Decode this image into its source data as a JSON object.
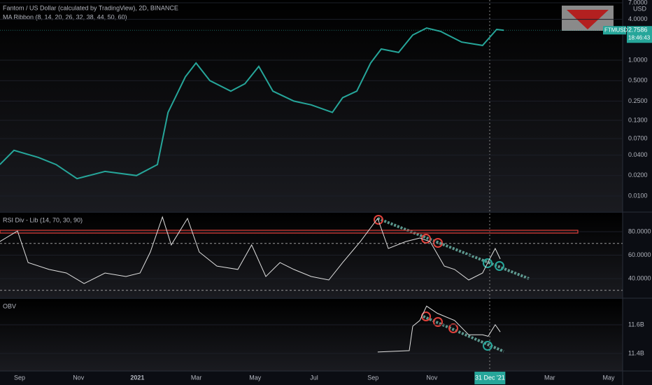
{
  "chart_data": [
    {
      "type": "line",
      "title": "Fantom / US Dollar (calculated by TradingView), 2D, BINANCE",
      "subtitle": "MA Ribbon (8, 14, 20, 26, 32, 38, 44, 50, 60)",
      "axis_unit": "USD",
      "log_scale": true,
      "color": "#26a69a",
      "x": [
        -0.67,
        -0.19,
        0.64,
        1.24,
        1.95,
        2.9,
        3.97,
        4.68,
        5.04,
        5.63,
        5.99,
        6.46,
        7.17,
        7.65,
        8.12,
        8.6,
        9.31,
        9.9,
        10.62,
        10.97,
        11.45,
        11.92,
        12.28,
        12.87,
        13.35,
        13.82,
        14.3,
        15.01,
        15.72,
        16.2,
        16.44
      ],
      "values": [
        0.029,
        0.047,
        0.037,
        0.029,
        0.018,
        0.023,
        0.02,
        0.029,
        0.17,
        0.57,
        0.91,
        0.5,
        0.35,
        0.45,
        0.81,
        0.35,
        0.25,
        0.22,
        0.17,
        0.28,
        0.35,
        0.91,
        1.46,
        1.3,
        2.35,
        2.98,
        2.65,
        1.85,
        1.65,
        2.84,
        2.76
      ],
      "xlim": [
        -0.665,
        20.475
      ],
      "xticks": [
        {
          "value": 0,
          "label": "Sep"
        },
        {
          "value": 2,
          "label": "Nov"
        },
        {
          "value": 4,
          "label": "2021"
        },
        {
          "value": 6,
          "label": "Mar"
        },
        {
          "value": 8,
          "label": "May"
        },
        {
          "value": 10,
          "label": "Jul"
        },
        {
          "value": 12,
          "label": "Sep"
        },
        {
          "value": 14,
          "label": "Nov"
        },
        {
          "value": 15.97,
          "label": "31 Dec '21"
        },
        {
          "value": 18,
          "label": "Mar"
        },
        {
          "value": 20,
          "label": "May"
        }
      ],
      "ylim": [
        0.00593,
        7.7
      ],
      "yticks": [
        {
          "value": 7,
          "label": "7.0000"
        },
        {
          "value": 4,
          "label": "4.0000"
        },
        {
          "value": 1,
          "label": "1.0000"
        },
        {
          "value": 0.5,
          "label": "0.5000"
        },
        {
          "value": 0.25,
          "label": "0.2500"
        },
        {
          "value": 0.13,
          "label": "0.1300"
        },
        {
          "value": 0.07,
          "label": "0.0700"
        },
        {
          "value": 0.04,
          "label": "0.0400"
        },
        {
          "value": 0.02,
          "label": "0.0200"
        },
        {
          "value": 0.01,
          "label": "0.0100"
        }
      ],
      "last_price": {
        "symbol": "FTMUSD",
        "value": 2.7586,
        "label": "2.7586",
        "countdown": "18:46:43"
      }
    },
    {
      "type": "line",
      "title": "RSI Div - Lib (14, 70, 30, 90)",
      "color": "#e0e0e0",
      "x": [
        -0.67,
        -0.07,
        0.29,
        1.0,
        1.59,
        2.19,
        2.9,
        3.61,
        4.09,
        4.44,
        4.85,
        5.15,
        5.7,
        6.1,
        6.7,
        7.41,
        7.88,
        8.36,
        8.84,
        9.31,
        9.9,
        10.5,
        10.97,
        11.57,
        12.16,
        12.52,
        13.11,
        13.59,
        13.94,
        14.42,
        14.77,
        15.25,
        15.72,
        15.96,
        16.15,
        16.32
      ],
      "values": [
        71.6,
        80.6,
        53.7,
        47.8,
        44.8,
        35.8,
        44.8,
        41.8,
        44.8,
        62.7,
        92.5,
        68.7,
        91.3,
        62.7,
        50.7,
        47.8,
        68.7,
        41.8,
        53.7,
        47.8,
        41.8,
        38.8,
        53.7,
        71.6,
        91.3,
        65.7,
        71.6,
        74.6,
        71.6,
        50.7,
        47.8,
        38.8,
        44.8,
        56.7,
        65.7,
        56.7
      ],
      "ylim": [
        23.9,
        96.7
      ],
      "yticks": [
        {
          "value": 80,
          "label": "80.0000"
        },
        {
          "value": 60,
          "label": "60.0000"
        },
        {
          "value": 40,
          "label": "40.0000"
        }
      ],
      "levels": [
        70,
        30
      ],
      "overbought": 80
    },
    {
      "type": "line",
      "title": "OBV",
      "color": "#e0e0e0",
      "x": [
        12.16,
        13.23,
        13.35,
        13.59,
        13.82,
        14.18,
        14.77,
        15.25,
        15.72,
        15.91,
        16.15,
        16.32
      ],
      "values": [
        11.41,
        11.42,
        11.59,
        11.63,
        11.73,
        11.68,
        11.63,
        11.53,
        11.53,
        11.52,
        11.6,
        11.55
      ],
      "ylim": [
        11.278,
        11.785
      ],
      "yticks": [
        {
          "value": 11.6,
          "label": "11.6B"
        },
        {
          "value": 11.4,
          "label": "11.4B"
        }
      ]
    }
  ]
}
